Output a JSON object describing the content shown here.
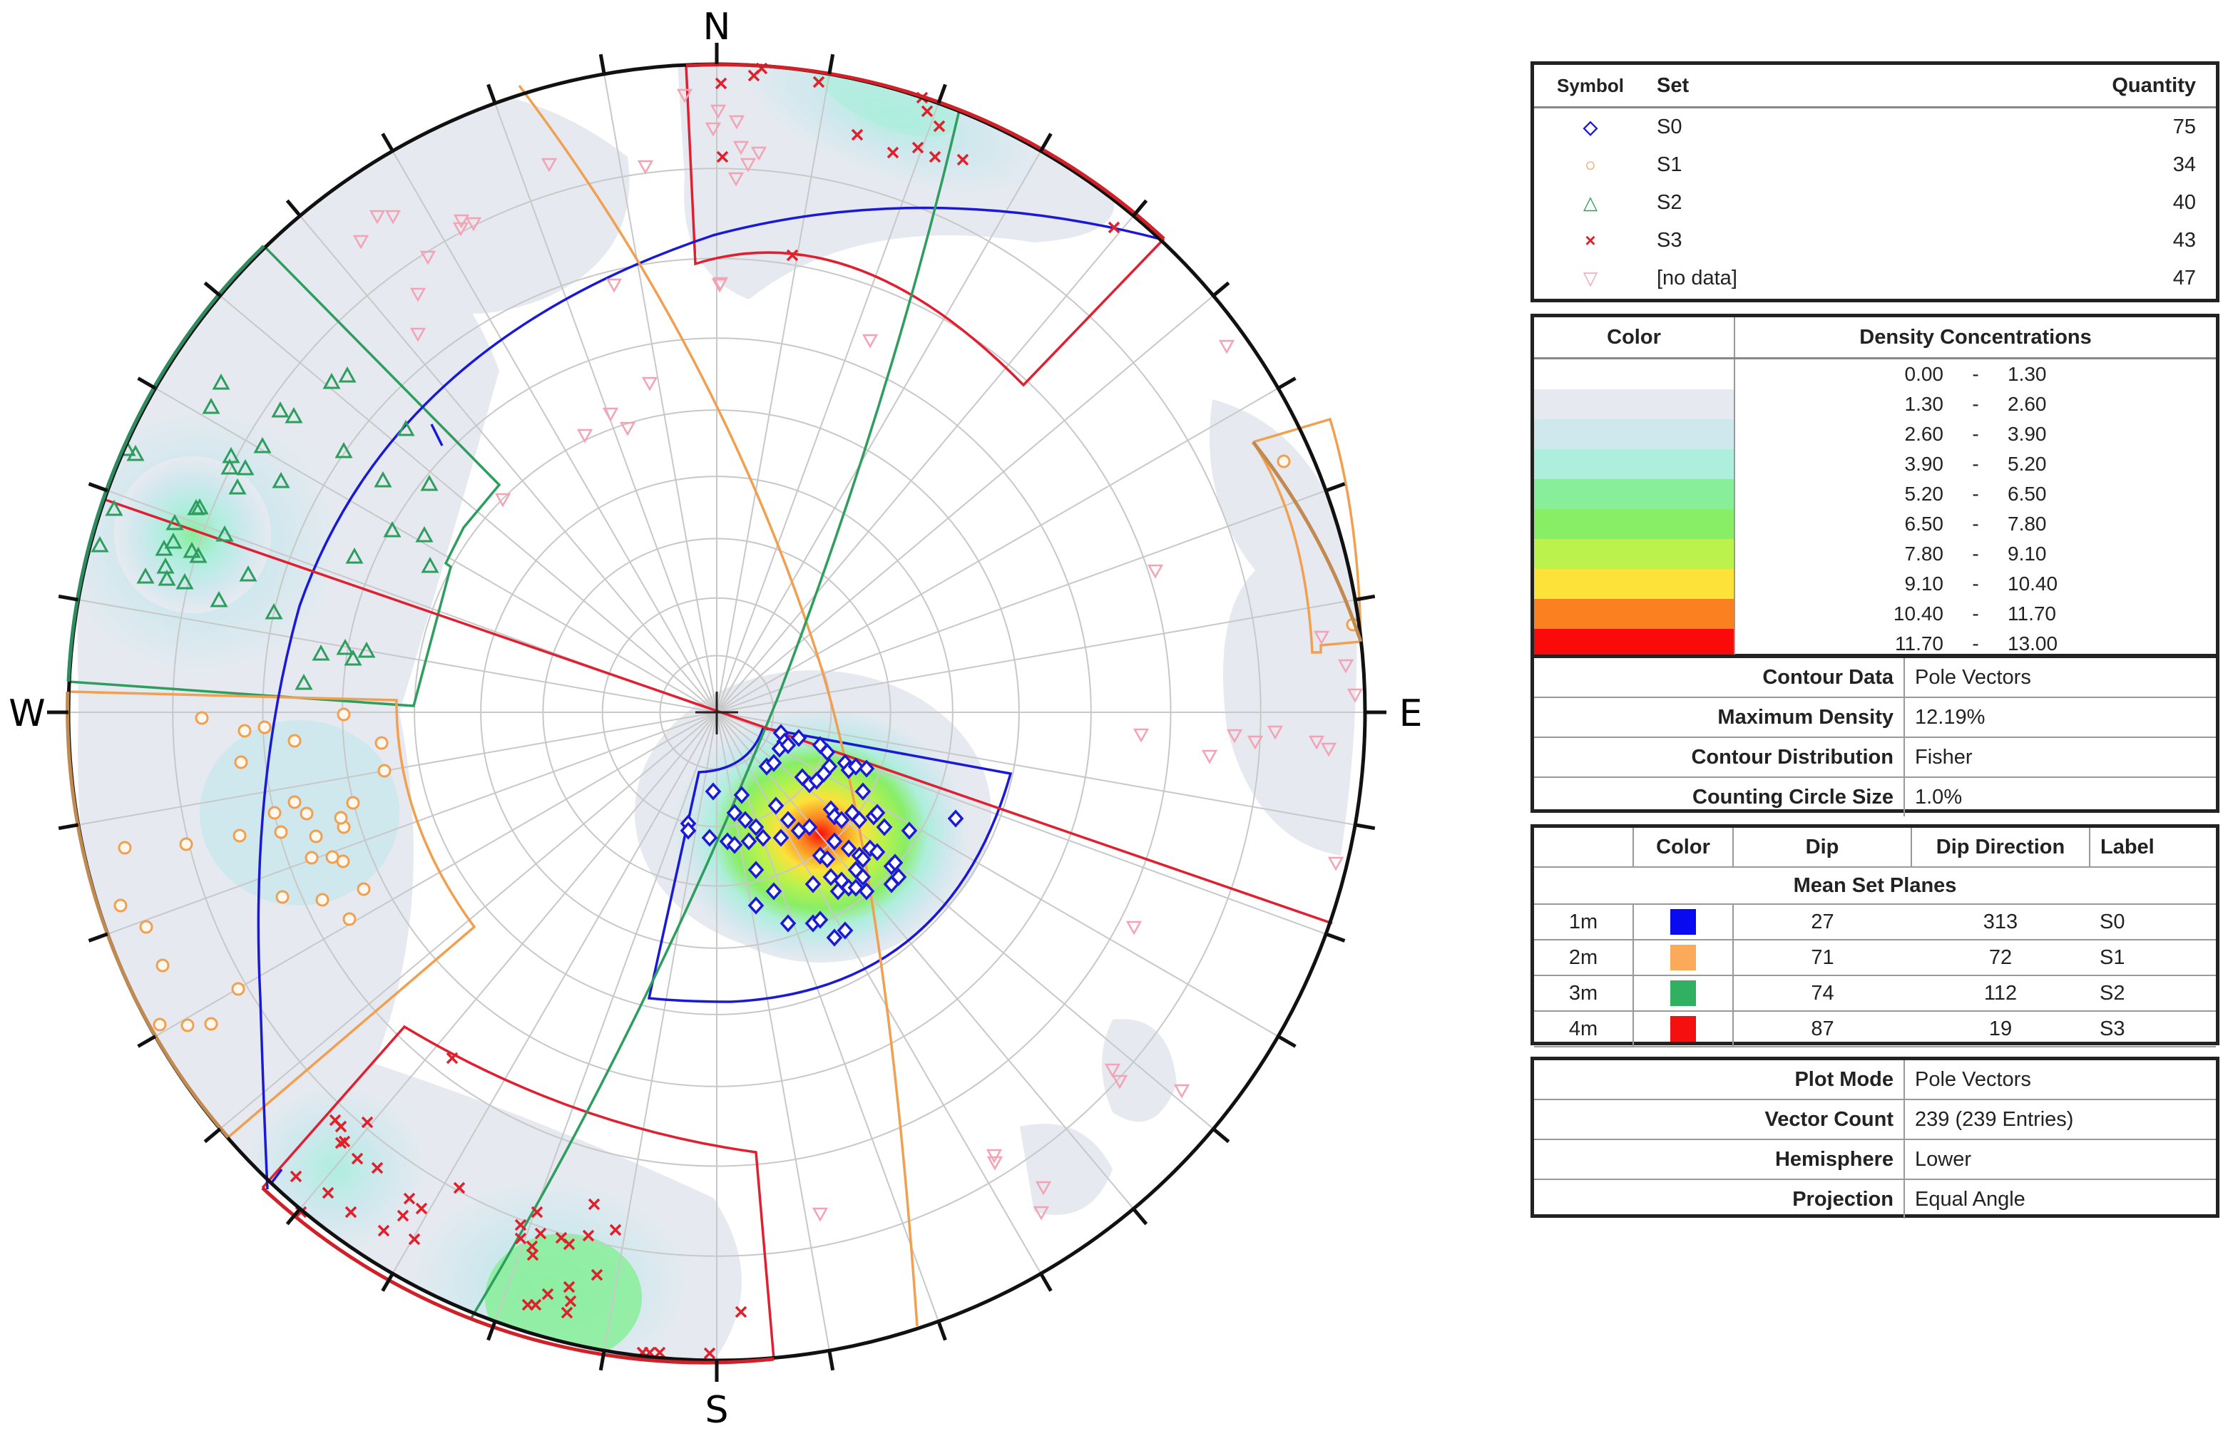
{
  "chart_data": {
    "type": "scatter",
    "subtype": "stereonet-pole-plot",
    "title": "",
    "compass_labels": {
      "north": "N",
      "east": "E",
      "south": "S",
      "west": "W"
    },
    "plot_mode": "Pole Vectors",
    "projection": "Equal Angle",
    "hemisphere": "Lower",
    "grid": true,
    "legend_position": "right",
    "sets": [
      {
        "name": "S0",
        "symbol": "diamond",
        "color": "#1a1ad6",
        "quantity": 75
      },
      {
        "name": "S1",
        "symbol": "circle",
        "color": "#f0a050",
        "quantity": 34
      },
      {
        "name": "S2",
        "symbol": "triangle",
        "color": "#2e9e5e",
        "quantity": 40
      },
      {
        "name": "S3",
        "symbol": "x",
        "color": "#e0202a",
        "quantity": 43
      },
      {
        "name": "[no data]",
        "symbol": "inverted-triangle",
        "color": "#f4a3b4",
        "quantity": 47
      }
    ],
    "density_bins": [
      {
        "min": "0.00",
        "max": "1.30",
        "color": "#ffffff"
      },
      {
        "min": "1.30",
        "max": "2.60",
        "color": "#e6eaf0"
      },
      {
        "min": "2.60",
        "max": "3.90",
        "color": "#cfe8ee"
      },
      {
        "min": "3.90",
        "max": "5.20",
        "color": "#aeeedd"
      },
      {
        "min": "5.20",
        "max": "6.50",
        "color": "#88ee99"
      },
      {
        "min": "6.50",
        "max": "7.80",
        "color": "#88ee66"
      },
      {
        "min": "7.80",
        "max": "9.10",
        "color": "#bbf24c"
      },
      {
        "min": "9.10",
        "max": "10.40",
        "color": "#fde23a"
      },
      {
        "min": "10.40",
        "max": "11.70",
        "color": "#fb8020"
      },
      {
        "min": "11.70",
        "max": "13.00",
        "color": "#fb0a0a"
      }
    ],
    "mean_set_planes": [
      {
        "id": "1m",
        "color": "#0a0af0",
        "dip": 27,
        "dip_direction": 313,
        "label": "S0"
      },
      {
        "id": "2m",
        "color": "#fbaa5a",
        "dip": 71,
        "dip_direction": 72,
        "label": "S1"
      },
      {
        "id": "3m",
        "color": "#30b060",
        "dip": 74,
        "dip_direction": 112,
        "label": "S2"
      },
      {
        "id": "4m",
        "color": "#f51010",
        "dip": 87,
        "dip_direction": 19,
        "label": "S3"
      }
    ],
    "max_density_percent": 12.19,
    "vector_count": 239
  },
  "legend": {
    "headers": {
      "symbol": "Symbol",
      "set": "Set",
      "quantity": "Quantity"
    },
    "rows": [
      {
        "glyph": "◇",
        "color": "#1a1ad6",
        "set": "S0",
        "quantity": "75"
      },
      {
        "glyph": "○",
        "color": "#f0a050",
        "set": "S1",
        "quantity": "34"
      },
      {
        "glyph": "△",
        "color": "#2e9e5e",
        "set": "S2",
        "quantity": "40"
      },
      {
        "glyph": "×",
        "color": "#e0202a",
        "set": "S3",
        "quantity": "43"
      },
      {
        "glyph": "▽",
        "color": "#f4a3b4",
        "set": "[no data]",
        "quantity": "47"
      }
    ]
  },
  "density": {
    "headers": {
      "color": "Color",
      "concentrations": "Density Concentrations"
    },
    "separator": "-"
  },
  "contour": {
    "rows": [
      {
        "label": "Contour Data",
        "value": "Pole Vectors"
      },
      {
        "label": "Maximum Density",
        "value": "12.19%"
      },
      {
        "label": "Contour Distribution",
        "value": "Fisher"
      },
      {
        "label": "Counting Circle Size",
        "value": "1.0%"
      }
    ]
  },
  "planes": {
    "headers": {
      "id": "",
      "color": "Color",
      "dip": "Dip",
      "dip_direction": "Dip Direction",
      "label": "Label"
    },
    "section_title": "Mean Set Planes"
  },
  "summary": {
    "rows": [
      {
        "label": "Plot Mode",
        "value": "Pole Vectors"
      },
      {
        "label": "Vector Count",
        "value": "239 (239 Entries)"
      },
      {
        "label": "Hemisphere",
        "value": "Lower"
      },
      {
        "label": "Projection",
        "value": "Equal Angle"
      }
    ]
  }
}
